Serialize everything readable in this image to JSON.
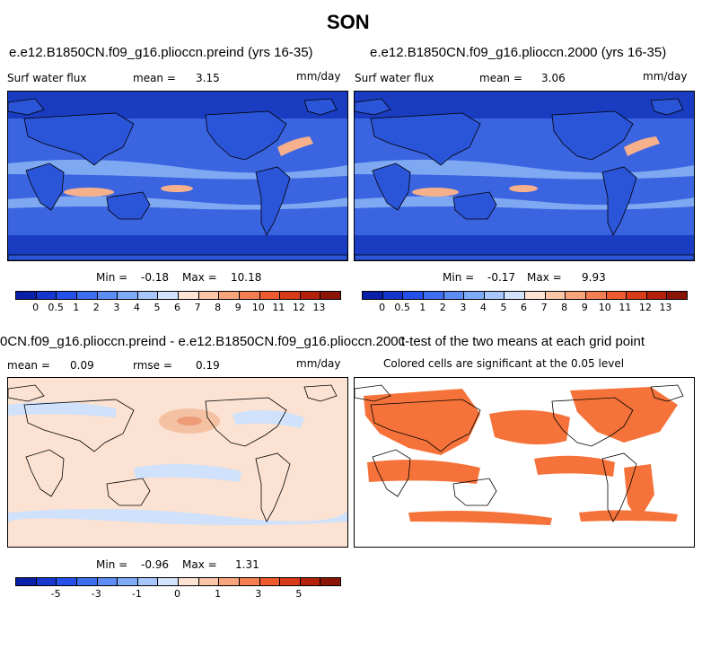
{
  "title": "SON",
  "panels": {
    "p1": {
      "title": "e.e12.B1850CN.f09_g16.plioccn.preind (yrs 16-35)",
      "label": "Surf water flux",
      "mean_label": "mean =",
      "mean": "3.15",
      "units": "mm/day",
      "min_label": "Min =",
      "min": "-0.18",
      "max_label": "Max =",
      "max": "10.18"
    },
    "p2": {
      "title": "e.e12.B1850CN.f09_g16.plioccn.2000 (yrs 16-35)",
      "label": "Surf water flux",
      "mean_label": "mean =",
      "mean": "3.06",
      "units": "mm/day",
      "min_label": "Min =",
      "min": "-0.17",
      "max_label": "Max =",
      "max": "9.93"
    },
    "p3": {
      "title": "0CN.f09_g16.plioccn.preind - e.e12.B1850CN.f09_g16.plioccn.2000",
      "mean_label": "mean =",
      "mean": "0.09",
      "rmse_label": "rmse =",
      "rmse": "0.19",
      "units": "mm/day",
      "min_label": "Min =",
      "min": "-0.96",
      "max_label": "Max =",
      "max": "1.31"
    },
    "p4": {
      "title": "t-test of the two means at each grid point",
      "subtitle": "Colored cells are significant at the 0.05 level"
    }
  },
  "colorbar_abs": {
    "colors": [
      "#0a1fa8",
      "#1736d0",
      "#2550ea",
      "#3e6ef2",
      "#5d8cf5",
      "#7eaaf8",
      "#a7c6fb",
      "#d3e3fd",
      "#fde3d3",
      "#fbc6a8",
      "#f8a47c",
      "#f57e52",
      "#ef5a2e",
      "#d93a17",
      "#b3210b",
      "#8a1405"
    ],
    "ticks": [
      "0",
      "0.5",
      "1",
      "2",
      "3",
      "4",
      "5",
      "6",
      "7",
      "8",
      "9",
      "10",
      "11",
      "12",
      "13"
    ]
  },
  "colorbar_diff": {
    "colors": [
      "#0a1fa8",
      "#1736d0",
      "#2550ea",
      "#3e6ef2",
      "#5d8cf5",
      "#7eaaf8",
      "#a7c6fb",
      "#d3e3fd",
      "#fde3d3",
      "#fbc6a8",
      "#f8a47c",
      "#f57e52",
      "#ef5a2e",
      "#d93a17",
      "#b3210b",
      "#8a1405"
    ],
    "ticks": [
      "-5",
      "-3",
      "-1",
      "0",
      "1",
      "3",
      "5"
    ]
  },
  "colors": {
    "ocean_abs": "#3a64e0",
    "ocean_deep": "#1a3cc0",
    "band_light": "#7fa8f2",
    "land_abs": "#2b55d8",
    "warm": "#f6b08c",
    "diff_bg": "#fbe2d2",
    "diff_cool": "#cfe1fb",
    "sig": "#f5733a"
  }
}
